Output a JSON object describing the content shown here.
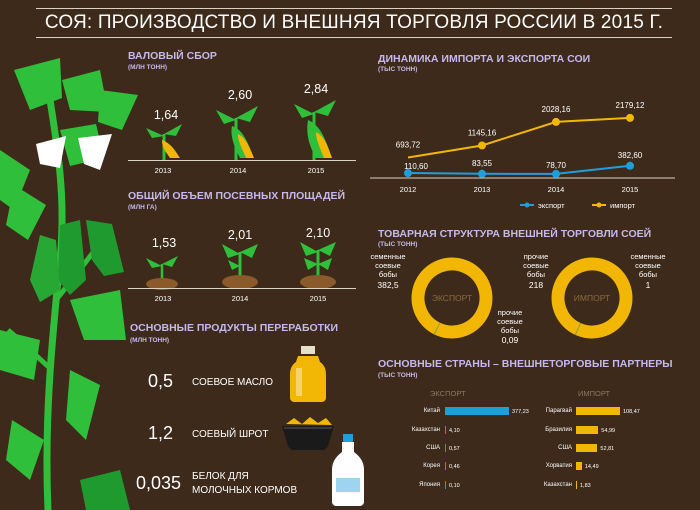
{
  "title": "СОЯ: ПРОИЗВОДСТВО И ВНЕШНЯЯ ТОРГОВЛЯ РОССИИ В 2015 Г.",
  "colors": {
    "background": "#3d2a1a",
    "accent_yellow": "#f2b705",
    "accent_blue": "#1e9fdc",
    "leaf_green": "#2fbf3a",
    "heading_lavender": "#c4b8ee"
  },
  "gross_harvest": {
    "title": "ВАЛОВЫЙ СБОР",
    "unit": "(МЛН ТОНН)",
    "items": [
      {
        "year": "2013",
        "value": "1,64"
      },
      {
        "year": "2014",
        "value": "2,60"
      },
      {
        "year": "2015",
        "value": "2,84"
      }
    ]
  },
  "sown_area": {
    "title": "ОБЩИЙ ОБЪЕМ ПОСЕВНЫХ ПЛОЩАДЕЙ",
    "unit": "(МЛН ГА)",
    "items": [
      {
        "year": "2013",
        "value": "1,53"
      },
      {
        "year": "2014",
        "value": "2,01"
      },
      {
        "year": "2015",
        "value": "2,10"
      }
    ]
  },
  "products": {
    "title": "ОСНОВНЫЕ ПРОДУКТЫ ПЕРЕРАБОТКИ",
    "unit": "(МЛН ТОНН)",
    "items": [
      {
        "value": "0,5",
        "name": "СОЕВОЕ МАСЛО",
        "icon": "oil-bottle-icon"
      },
      {
        "value": "1,2",
        "name": "СОЕВЫЙ ШРОТ",
        "icon": "meal-bowl-icon"
      },
      {
        "value": "0,035",
        "name": "БЕЛОК ДЛЯ МОЛОЧНЫХ КОРМОВ",
        "name_line1": "БЕЛОК ДЛЯ",
        "name_line2": "МОЛОЧНЫХ КОРМОВ",
        "icon": "milk-bottle-icon"
      }
    ]
  },
  "chart_data": [
    {
      "type": "line",
      "title": "ДИНАМИКА ИМПОРТА И ЭКСПОРТА СОИ",
      "unit": "(ТЫС ТОНН)",
      "x": [
        "2012",
        "2013",
        "2014",
        "2015"
      ],
      "series": [
        {
          "name": "экспорт",
          "color": "#1e9fdc",
          "values": [
            110.6,
            83.55,
            78.7,
            382.6
          ],
          "labels": [
            "110,60",
            "83,55",
            "78,70",
            "382,60"
          ]
        },
        {
          "name": "импорт",
          "color": "#f2b705",
          "values": [
            693.72,
            1145.16,
            2028.16,
            2179.12
          ],
          "labels": [
            "693,72",
            "1145,16",
            "2028,16",
            "2179,12"
          ]
        }
      ],
      "ylim": [
        0,
        2400
      ],
      "legend": "bottom"
    },
    {
      "type": "pie",
      "title": "ТОВАРНАЯ СТРУКТУРА ВНЕШНЕЙ ТОРГОВЛИ СОЕЙ",
      "unit": "(ТЫС ТОНН)",
      "charts": [
        {
          "name": "ЭКСПОРТ",
          "slices": [
            {
              "label_lines": [
                "семенные",
                "соевые",
                "бобы"
              ],
              "value": 382.5,
              "value_label": "382,5",
              "color": "#f2b705"
            },
            {
              "label_lines": [
                "прочие",
                "соевые",
                "бобы"
              ],
              "value": 0.09,
              "value_label": "0,09",
              "color": "#9aa63a"
            }
          ]
        },
        {
          "name": "ИМПОРТ",
          "slices": [
            {
              "label_lines": [
                "прочие",
                "соевые",
                "бобы"
              ],
              "value": 218,
              "value_label": "218",
              "color": "#f2b705"
            },
            {
              "label_lines": [
                "семенные",
                "соевые",
                "бобы"
              ],
              "value": 1,
              "value_label": "1",
              "color": "#9aa63a"
            }
          ]
        }
      ]
    },
    {
      "type": "bar",
      "orientation": "horizontal",
      "title": "ОСНОВНЫЕ СТРАНЫ – ВНЕШНЕТОРГОВЫЕ ПАРТНЕРЫ",
      "unit": "(ТЫС ТОНН)",
      "groups": [
        {
          "name": "ЭКСПОРТ",
          "color": "#1e9fdc",
          "categories": [
            "Китай",
            "Казахстан",
            "США",
            "Корея",
            "Япония"
          ],
          "values": [
            377.23,
            4.1,
            0.57,
            0.46,
            0.1
          ],
          "labels": [
            "377,23",
            "4,10",
            "0,57",
            "0,46",
            "0,10"
          ]
        },
        {
          "name": "ИМПОРТ",
          "color": "#f2b705",
          "categories": [
            "Парагвай",
            "Бразилия",
            "США",
            "Хорватия",
            "Казахстан"
          ],
          "values": [
            108.47,
            54.99,
            52.81,
            14.49,
            1.83
          ],
          "labels": [
            "108,47",
            "54,99",
            "52,81",
            "14,49",
            "1,83"
          ]
        }
      ]
    }
  ]
}
